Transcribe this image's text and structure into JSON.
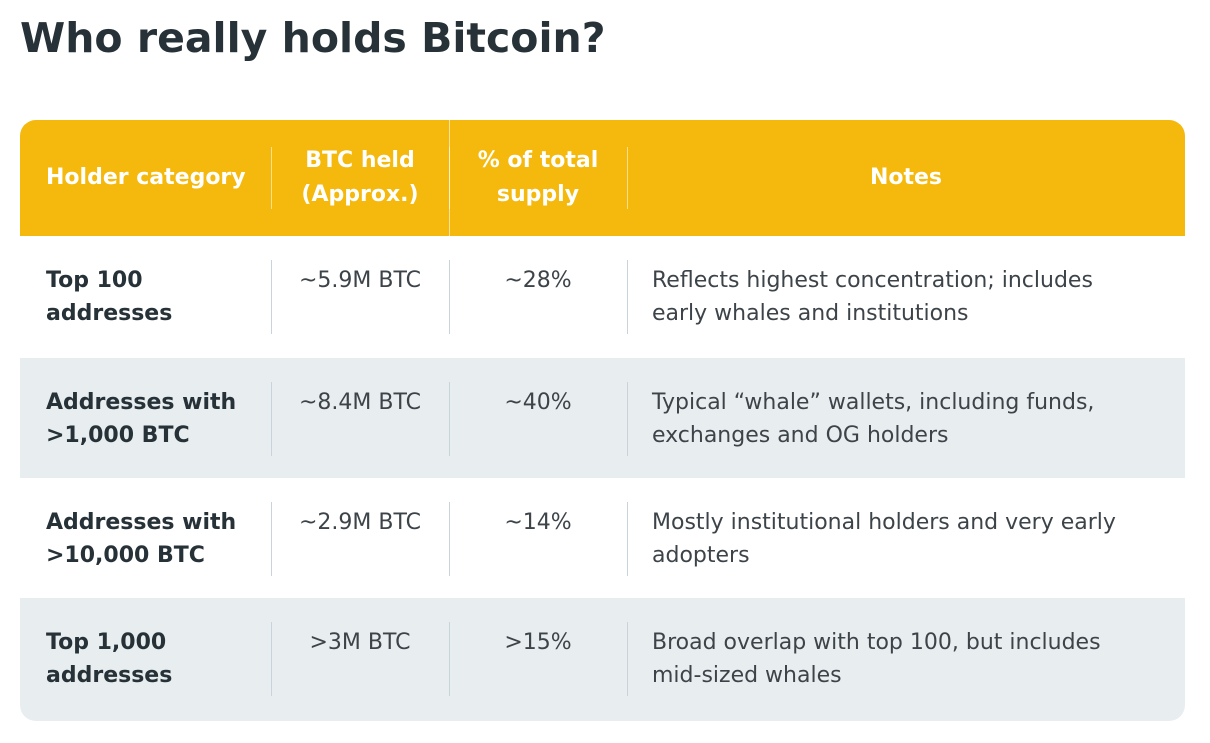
{
  "title": "Who really holds Bitcoin?",
  "table": {
    "headers": [
      "Holder category",
      "BTC held (Approx.)",
      "% of total supply",
      "Notes"
    ],
    "rows": [
      {
        "category": "Top 100 addresses",
        "btc": "~5.9M BTC",
        "pct": "~28%",
        "notes": "Reflects highest concentration; includes early whales and institutions"
      },
      {
        "category": "Addresses with >1,000 BTC",
        "btc": "~8.4M BTC",
        "pct": "~40%",
        "notes": "Typical “whale” wallets, including funds, exchanges and OG holders"
      },
      {
        "category": "Addresses with >10,000 BTC",
        "btc": "~2.9M BTC",
        "pct": "~14%",
        "notes": "Mostly institutional holders and very early adopters"
      },
      {
        "category": "Top 1,000 addresses",
        "btc": ">3M BTC",
        "pct": ">15%",
        "notes": "Broad overlap with top 100, but includes mid-sized whales"
      }
    ]
  },
  "colors": {
    "header_bg": "#f5b80c",
    "shaded_row_bg": "#e8edf0",
    "title_text": "#263238"
  }
}
